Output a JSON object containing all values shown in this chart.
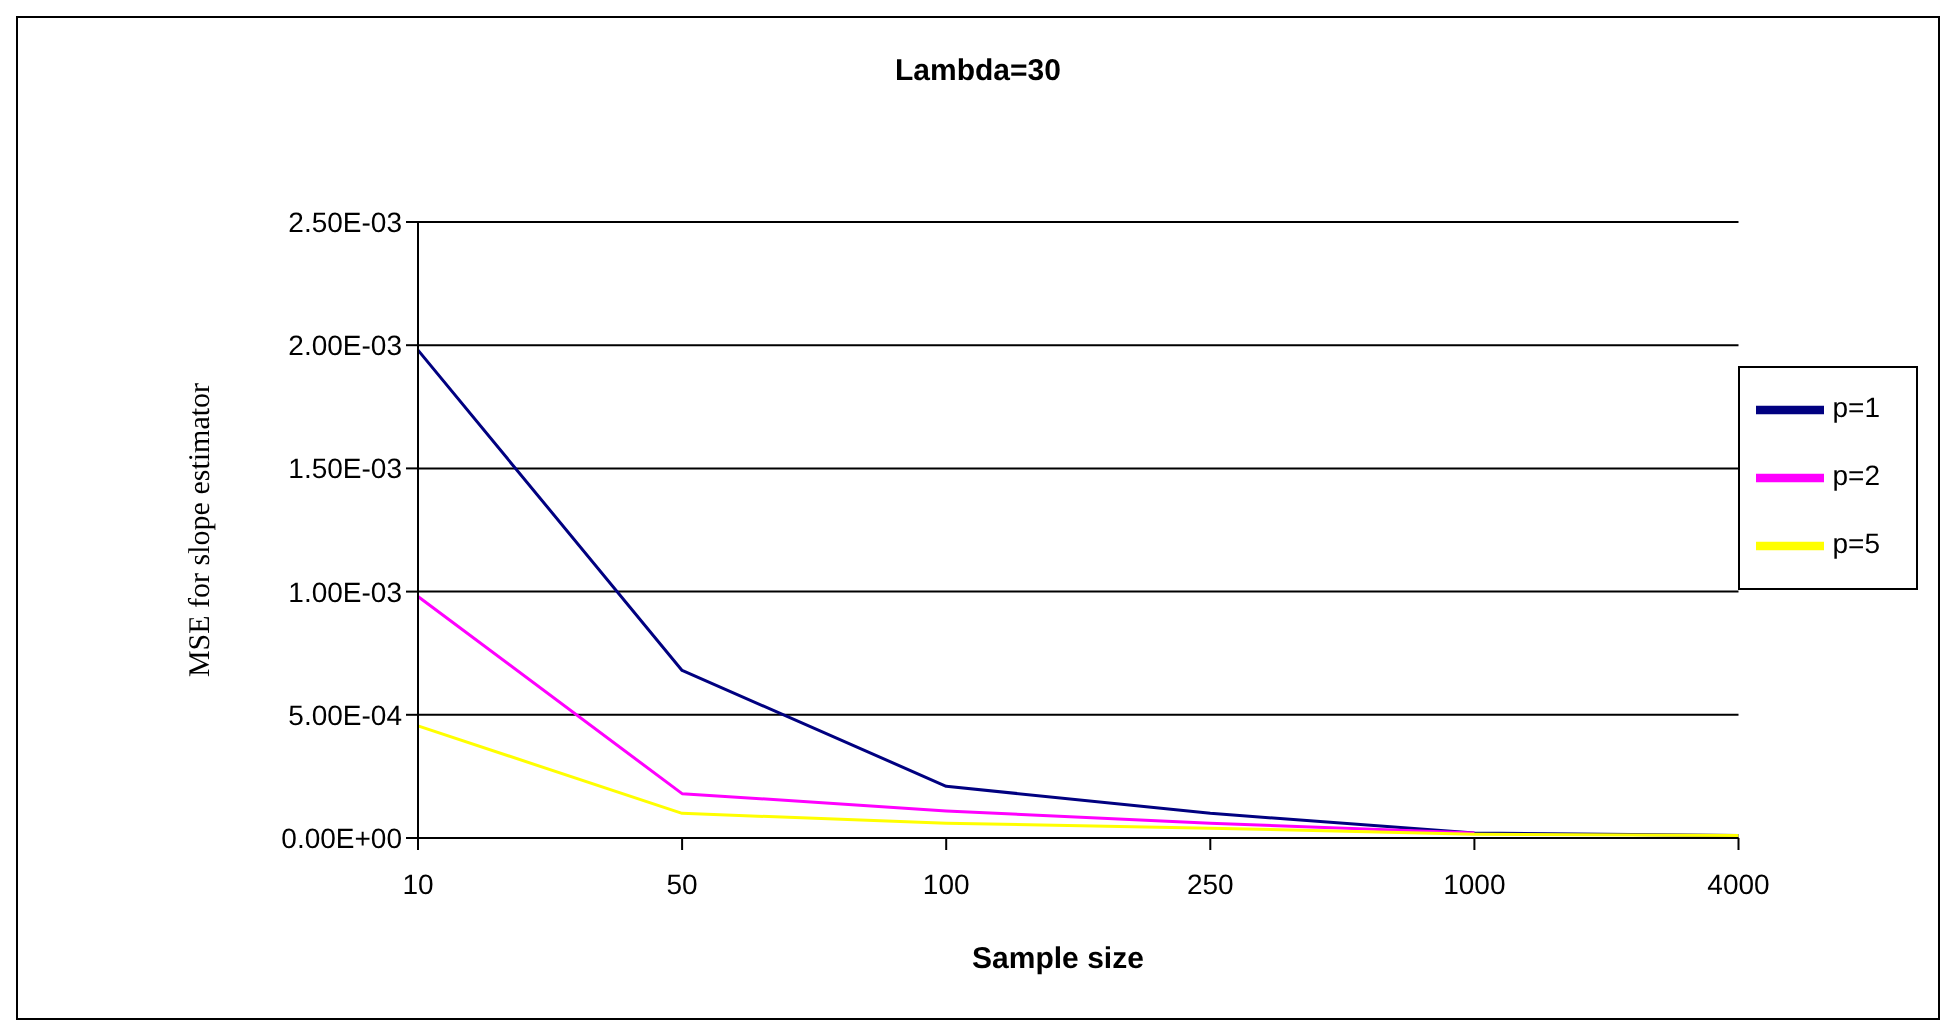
{
  "chart_data": {
    "type": "line",
    "title": "Lambda=30",
    "xlabel": "Sample size",
    "ylabel": "MSE for slope estimator",
    "categories": [
      "10",
      "50",
      "100",
      "250",
      "1000",
      "4000"
    ],
    "series": [
      {
        "name": "p=1",
        "color": "#000080",
        "values": [
          0.00198,
          0.00068,
          0.00021,
          0.0001,
          2e-05,
          1e-05
        ]
      },
      {
        "name": "p=2",
        "color": "#ff00ff",
        "values": [
          0.00098,
          0.00018,
          0.00011,
          6e-05,
          2e-05,
          null
        ]
      },
      {
        "name": "p=5",
        "color": "#ffff00",
        "values": [
          0.000455,
          0.0001,
          6e-05,
          4e-05,
          1.5e-05,
          1e-05
        ]
      }
    ],
    "ylim": [
      0,
      0.0025
    ],
    "yticks": [
      {
        "value": 0,
        "label": "0.00E+00"
      },
      {
        "value": 0.0005,
        "label": "5.00E-04"
      },
      {
        "value": 0.001,
        "label": "1.00E-03"
      },
      {
        "value": 0.0015,
        "label": "1.50E-03"
      },
      {
        "value": 0.002,
        "label": "2.00E-03"
      },
      {
        "value": 0.0025,
        "label": "2.50E-03"
      }
    ],
    "grid": "y",
    "legend": "right",
    "marker": "none",
    "line_style": "solid"
  }
}
